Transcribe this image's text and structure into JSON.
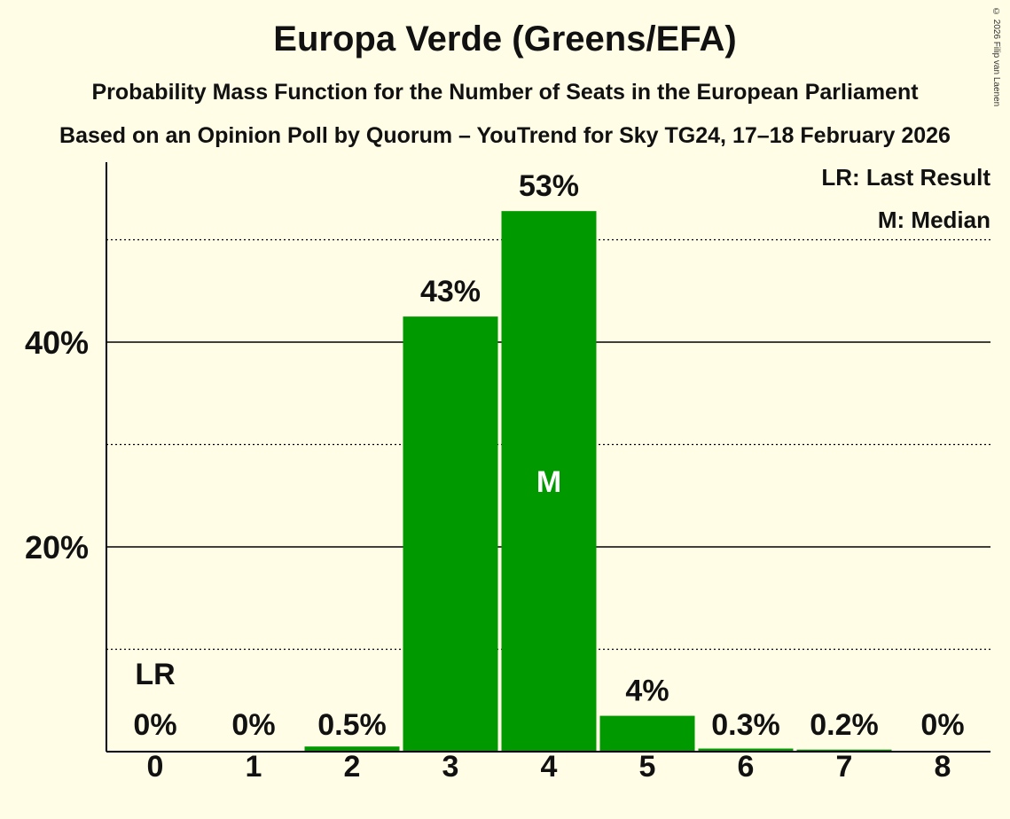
{
  "chart_data": {
    "type": "bar",
    "title": "Europa Verde (Greens/EFA)",
    "subtitle": "Probability Mass Function for the Number of Seats in the European Parliament",
    "subtitle2": "Based on an Opinion Poll by Quorum – YouTrend for Sky TG24, 17–18 February 2026",
    "copyright": "© 2026 Filip van Laenen",
    "categories": [
      "0",
      "1",
      "2",
      "3",
      "4",
      "5",
      "6",
      "7",
      "8"
    ],
    "values": [
      0,
      0,
      0.5,
      42.5,
      52.8,
      3.5,
      0.3,
      0.2,
      0
    ],
    "value_labels": [
      "0%",
      "0%",
      "0.5%",
      "43%",
      "53%",
      "4%",
      "0.3%",
      "0.2%",
      "0%"
    ],
    "ylim": [
      0,
      57.5
    ],
    "yticks_major": [
      20,
      40
    ],
    "ytick_labels": [
      "20%",
      "40%"
    ],
    "yticks_minor": [
      10,
      30,
      50
    ],
    "last_result_index": 0,
    "last_result_marker": "LR",
    "median_index": 4,
    "median_marker": "M",
    "legend": [
      "LR: Last Result",
      "M: Median"
    ],
    "legend_position": "top-right",
    "bar_color": "#009900",
    "background_color": "#fffde6"
  }
}
